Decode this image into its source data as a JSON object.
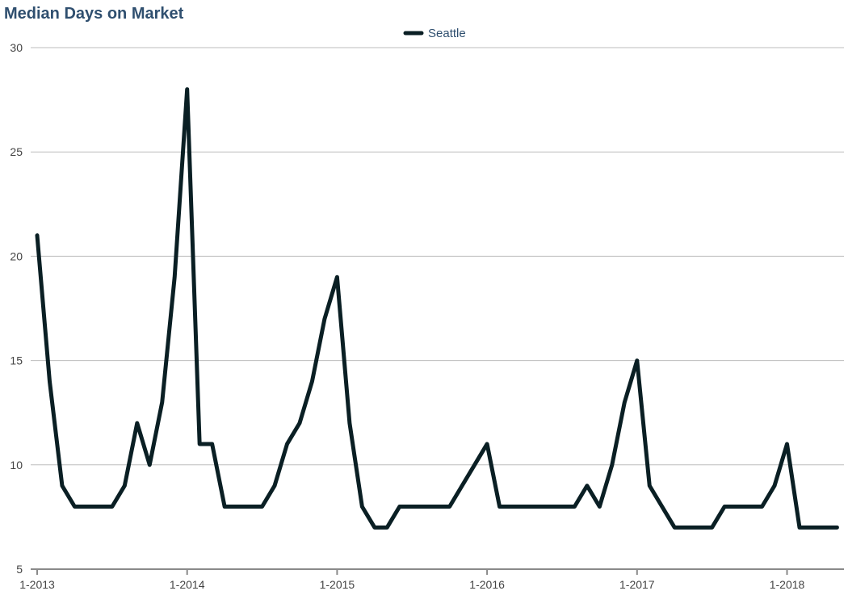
{
  "colors": {
    "title": "#2f4f6f",
    "series": "#0a1f24",
    "grid": "#bdbdbd",
    "axis": "#8a8a8a",
    "tick_text": "#444444",
    "legend_text": "#2f4f6f"
  },
  "chart_data": {
    "type": "line",
    "title": "Median Days on Market",
    "xlabel": "",
    "ylabel": "",
    "ylim": [
      5,
      30
    ],
    "y_ticks": [
      5,
      10,
      15,
      20,
      25,
      30
    ],
    "grid": true,
    "legend_position": "top-center",
    "x_tick_labels": [
      "1-2013",
      "1-2014",
      "1-2015",
      "1-2016",
      "1-2017",
      "1-2018"
    ],
    "x": [
      "1-2013",
      "2-2013",
      "3-2013",
      "4-2013",
      "5-2013",
      "6-2013",
      "7-2013",
      "8-2013",
      "9-2013",
      "10-2013",
      "11-2013",
      "12-2013",
      "1-2014",
      "2-2014",
      "3-2014",
      "4-2014",
      "5-2014",
      "6-2014",
      "7-2014",
      "8-2014",
      "9-2014",
      "10-2014",
      "11-2014",
      "12-2014",
      "1-2015",
      "2-2015",
      "3-2015",
      "4-2015",
      "5-2015",
      "6-2015",
      "7-2015",
      "8-2015",
      "9-2015",
      "10-2015",
      "11-2015",
      "12-2015",
      "1-2016",
      "2-2016",
      "3-2016",
      "4-2016",
      "5-2016",
      "6-2016",
      "7-2016",
      "8-2016",
      "9-2016",
      "10-2016",
      "11-2016",
      "12-2016",
      "1-2017",
      "2-2017",
      "3-2017",
      "4-2017",
      "5-2017",
      "6-2017",
      "7-2017",
      "8-2017",
      "9-2017",
      "10-2017",
      "11-2017",
      "12-2017",
      "1-2018",
      "2-2018",
      "3-2018",
      "4-2018",
      "5-2018"
    ],
    "series": [
      {
        "name": "Seattle",
        "values": [
          21,
          14,
          9,
          8,
          8,
          8,
          8,
          9,
          12,
          10,
          13,
          19,
          28,
          11,
          11,
          8,
          8,
          8,
          8,
          9,
          11,
          12,
          14,
          17,
          19,
          12,
          8,
          7,
          7,
          8,
          8,
          8,
          8,
          8,
          9,
          10,
          11,
          8,
          8,
          8,
          8,
          8,
          8,
          8,
          9,
          8,
          10,
          13,
          15,
          9,
          8,
          7,
          7,
          7,
          7,
          8,
          8,
          8,
          8,
          9,
          11,
          7,
          7,
          7,
          7
        ]
      }
    ]
  }
}
